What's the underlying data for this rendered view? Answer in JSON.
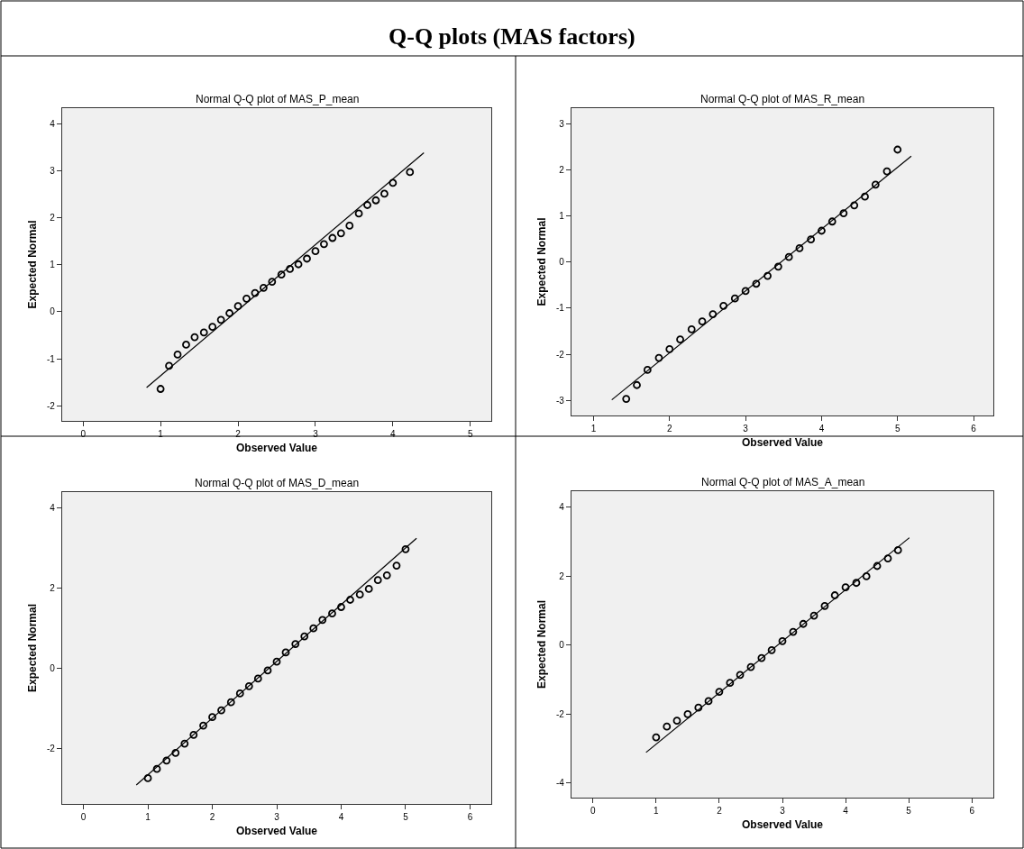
{
  "chart_data": [
    {
      "type": "other",
      "title": "Q-Q plots (MAS factors)"
    },
    {
      "type": "scatter",
      "title": "Normal Q-Q plot of MAS_P_mean",
      "xlabel": "Observed Value",
      "ylabel": "Expected Normal",
      "xlim": [
        -0.27,
        5.27
      ],
      "ylim": [
        -2.32,
        4.33
      ],
      "xticks": [
        0,
        1,
        2,
        3,
        4,
        5
      ],
      "yticks": [
        -2,
        -1,
        0,
        1,
        2,
        3,
        4
      ],
      "series": [
        {
          "color": "#000000",
          "marker": "circle",
          "x": [
            1.0,
            1.11,
            1.22,
            1.33,
            1.44,
            1.56,
            1.67,
            1.78,
            1.89,
            2.0,
            2.11,
            2.22,
            2.33,
            2.44,
            2.56,
            2.67,
            2.78,
            2.89,
            3.0,
            3.11,
            3.22,
            3.33,
            3.44,
            3.56,
            3.67,
            3.78,
            3.89,
            4.0,
            4.22
          ],
          "values": [
            -1.64,
            -1.15,
            -0.91,
            -0.7,
            -0.54,
            -0.44,
            -0.32,
            -0.17,
            -0.03,
            0.12,
            0.28,
            0.4,
            0.51,
            0.64,
            0.79,
            0.91,
            1.01,
            1.13,
            1.29,
            1.44,
            1.57,
            1.67,
            1.83,
            2.09,
            2.27,
            2.37,
            2.51,
            2.74,
            2.97
          ]
        },
        {
          "type": "line",
          "color": "#000000",
          "x": [
            0.82,
            4.4
          ],
          "values": [
            -1.61,
            3.38
          ]
        }
      ]
    },
    {
      "type": "scatter",
      "title": "Normal Q-Q plot of MAS_R_mean",
      "xlabel": "Observed Value",
      "ylabel": "Expected Normal",
      "xlim": [
        0.71,
        6.26
      ],
      "ylim": [
        -3.33,
        3.34
      ],
      "xticks": [
        1,
        2,
        3,
        4,
        5,
        6
      ],
      "yticks": [
        -3,
        -2,
        -1,
        0,
        1,
        2,
        3
      ],
      "series": [
        {
          "color": "#000000",
          "marker": "circle",
          "x": [
            1.43,
            1.57,
            1.71,
            1.86,
            2.0,
            2.14,
            2.29,
            2.43,
            2.57,
            2.71,
            2.86,
            3.0,
            3.14,
            3.29,
            3.43,
            3.57,
            3.71,
            3.86,
            4.0,
            4.14,
            4.29,
            4.43,
            4.57,
            4.71,
            4.86,
            5.0
          ],
          "values": [
            -2.97,
            -2.67,
            -2.34,
            -2.08,
            -1.89,
            -1.68,
            -1.46,
            -1.29,
            -1.13,
            -0.95,
            -0.79,
            -0.63,
            -0.47,
            -0.3,
            -0.1,
            0.11,
            0.3,
            0.49,
            0.68,
            0.88,
            1.06,
            1.23,
            1.42,
            1.68,
            1.97,
            2.44
          ]
        },
        {
          "type": "line",
          "color": "#000000",
          "x": [
            1.24,
            5.18
          ],
          "values": [
            -2.99,
            2.3
          ]
        }
      ]
    },
    {
      "type": "scatter",
      "title": "Normal Q-Q plot of MAS_D_mean",
      "xlabel": "Observed Value",
      "ylabel": "Expected Normal",
      "xlim": [
        -0.33,
        6.33
      ],
      "ylim": [
        -3.37,
        4.39
      ],
      "xticks": [
        0,
        1,
        2,
        3,
        4,
        5,
        6
      ],
      "yticks": [
        -2,
        0,
        2,
        4
      ],
      "series": [
        {
          "color": "#000000",
          "marker": "circle",
          "x": [
            1.0,
            1.14,
            1.29,
            1.43,
            1.57,
            1.71,
            1.86,
            2.0,
            2.14,
            2.29,
            2.43,
            2.57,
            2.71,
            2.86,
            3.0,
            3.14,
            3.29,
            3.43,
            3.57,
            3.71,
            3.86,
            4.0,
            4.14,
            4.29,
            4.43,
            4.57,
            4.71,
            4.86,
            5.0
          ],
          "values": [
            -2.73,
            -2.5,
            -2.29,
            -2.1,
            -1.87,
            -1.65,
            -1.42,
            -1.21,
            -1.04,
            -0.84,
            -0.62,
            -0.44,
            -0.25,
            -0.05,
            0.17,
            0.4,
            0.61,
            0.8,
            1.0,
            1.21,
            1.37,
            1.53,
            1.71,
            1.84,
            1.98,
            2.2,
            2.32,
            2.56,
            2.97
          ]
        },
        {
          "type": "line",
          "color": "#000000",
          "x": [
            0.82,
            5.17
          ],
          "values": [
            -2.9,
            3.24
          ]
        }
      ]
    },
    {
      "type": "scatter",
      "title": "Normal Q-Q plot of MAS_A_mean",
      "xlabel": "Observed Value",
      "ylabel": "Expected Normal",
      "xlim": [
        -0.34,
        6.34
      ],
      "ylim": [
        -4.42,
        4.47
      ],
      "xticks": [
        0,
        1,
        2,
        3,
        4,
        5,
        6
      ],
      "yticks": [
        -4,
        -2,
        0,
        2,
        4
      ],
      "series": [
        {
          "color": "#000000",
          "marker": "circle",
          "x": [
            1.0,
            1.17,
            1.33,
            1.5,
            1.67,
            1.83,
            2.0,
            2.17,
            2.33,
            2.5,
            2.67,
            2.83,
            3.0,
            3.17,
            3.33,
            3.5,
            3.67,
            3.83,
            4.0,
            4.17,
            4.33,
            4.5,
            4.67,
            4.83
          ],
          "values": [
            -2.67,
            -2.36,
            -2.19,
            -2.0,
            -1.81,
            -1.62,
            -1.35,
            -1.09,
            -0.86,
            -0.63,
            -0.37,
            -0.14,
            0.12,
            0.39,
            0.62,
            0.86,
            1.14,
            1.45,
            1.68,
            1.81,
            2.0,
            2.3,
            2.52,
            2.76
          ]
        },
        {
          "type": "line",
          "color": "#000000",
          "x": [
            0.84,
            5.01
          ],
          "values": [
            -3.11,
            3.12
          ]
        }
      ]
    }
  ]
}
